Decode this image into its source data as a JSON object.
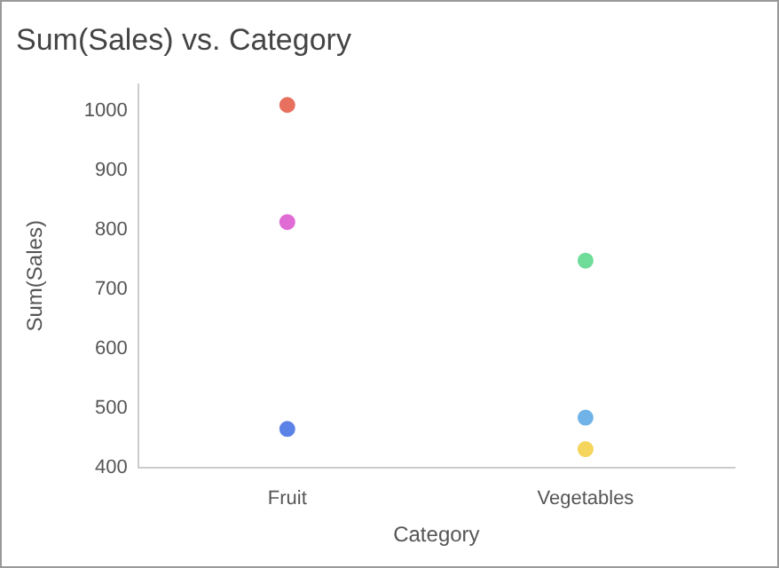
{
  "chart_data": {
    "type": "scatter",
    "title": "Sum(Sales) vs. Category",
    "xlabel": "Category",
    "ylabel": "Sum(Sales)",
    "categories": [
      "Fruit",
      "Vegetables"
    ],
    "series": [
      {
        "colors": [
          "#e8705f",
          "#6fdc9a"
        ],
        "values": [
          1010,
          748
        ]
      },
      {
        "colors": [
          "#e06bd5",
          "#6fb3e8"
        ],
        "values": [
          813,
          484
        ]
      },
      {
        "colors": [
          "#5b82e6",
          "#f5d55b"
        ],
        "values": [
          465,
          431
        ]
      }
    ],
    "ylim": [
      400,
      1045
    ],
    "yticks": [
      400,
      500,
      600,
      700,
      800,
      900,
      1000
    ],
    "grid": false,
    "legend": false,
    "marker": "circle"
  }
}
